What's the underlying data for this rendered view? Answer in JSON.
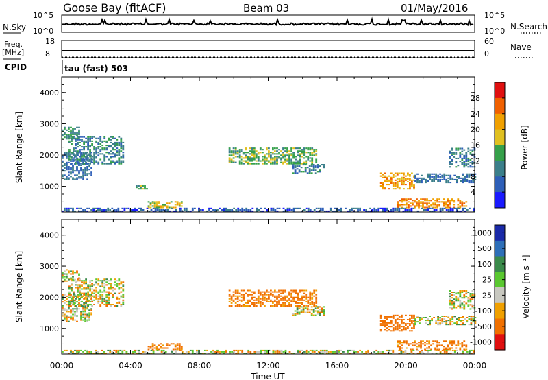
{
  "header": {
    "station": "Goose Bay (fitACF)",
    "beam": "Beam 03",
    "date": "01/May/2016"
  },
  "param_panels": {
    "nsky_label": "N.Sky",
    "nsearch_label": "N.Search",
    "nsky_ticks": [
      "10^5",
      "10^0"
    ],
    "nsearch_ticks": [
      "10^5",
      "10^0"
    ],
    "freq_label_1": "Freq.",
    "freq_label_2": "[MHz]",
    "freq_ticks": [
      "18",
      "8"
    ],
    "nave_label": "Nave",
    "nave_ticks": [
      "60",
      "0"
    ],
    "cpid_label": "CPID",
    "cpid_value": "tau (fast) 503"
  },
  "chart_data": [
    {
      "type": "heatmap",
      "title": "",
      "ylabel": "Slant Range [km]",
      "xlabel": "",
      "ylim": [
        180,
        4500
      ],
      "yticks": [
        "1000",
        "2000",
        "3000",
        "4000"
      ],
      "colorbar": {
        "label": "Power [dB]",
        "ticks": [
          "4",
          "8",
          "12",
          "16",
          "20",
          "24",
          "28"
        ],
        "colors": [
          "#1a1aff",
          "#2e5fb8",
          "#3b7f8a",
          "#35a04a",
          "#e0c020",
          "#f0a000",
          "#f06000",
          "#e01010"
        ]
      },
      "regions_note_units": "time in hours UT, range in km, value in dB",
      "regions": [
        {
          "t": [
            0.0,
            1.7
          ],
          "r": [
            1200,
            2100
          ],
          "v": 8
        },
        {
          "t": [
            0.4,
            3.6
          ],
          "r": [
            1700,
            2600
          ],
          "v": 10
        },
        {
          "t": [
            0.0,
            1.0
          ],
          "r": [
            2500,
            2900
          ],
          "v": 12
        },
        {
          "t": [
            4.3,
            5.0
          ],
          "r": [
            900,
            1000
          ],
          "v": 14
        },
        {
          "t": [
            5.0,
            7.0
          ],
          "r": [
            300,
            500
          ],
          "v": 18
        },
        {
          "t": [
            9.7,
            14.8
          ],
          "r": [
            1700,
            2200
          ],
          "v": 14
        },
        {
          "t": [
            13.4,
            15.3
          ],
          "r": [
            1400,
            1700
          ],
          "v": 10
        },
        {
          "t": [
            18.5,
            20.5
          ],
          "r": [
            900,
            1400
          ],
          "v": 22
        },
        {
          "t": [
            19.5,
            23.5
          ],
          "r": [
            300,
            600
          ],
          "v": 24
        },
        {
          "t": [
            20.5,
            24.0
          ],
          "r": [
            1100,
            1400
          ],
          "v": 8
        },
        {
          "t": [
            22.5,
            24.0
          ],
          "r": [
            1600,
            2200
          ],
          "v": 10
        },
        {
          "t": [
            0.0,
            24.0
          ],
          "r": [
            180,
            300
          ],
          "v": 6
        }
      ]
    },
    {
      "type": "heatmap",
      "title": "",
      "ylabel": "Slant Range [km]",
      "xlabel": "Time UT",
      "ylim": [
        180,
        4500
      ],
      "yticks": [
        "1000",
        "2000",
        "3000",
        "4000"
      ],
      "xticks": [
        "00:00",
        "04:00",
        "08:00",
        "12:00",
        "16:00",
        "20:00",
        "00:00"
      ],
      "colorbar": {
        "label": "Velocity [m s⁻¹]",
        "ticks": [
          "1000",
          "500",
          "100",
          "25",
          "-25",
          "-100",
          "-500",
          "-1000"
        ],
        "colors": [
          "#1a2aa8",
          "#2e6fb8",
          "#3a8a4a",
          "#5ac830",
          "#c8c8c0",
          "#f0a000",
          "#f07000",
          "#e01010"
        ]
      },
      "regions_note_units": "time in hours UT, range in km, value in m/s",
      "regions": [
        {
          "t": [
            0.0,
            1.7
          ],
          "r": [
            1200,
            2100
          ],
          "v": 0
        },
        {
          "t": [
            0.4,
            3.6
          ],
          "r": [
            1700,
            2600
          ],
          "v": 0
        },
        {
          "t": [
            0.0,
            1.0
          ],
          "r": [
            2500,
            2900
          ],
          "v": 0
        },
        {
          "t": [
            5.0,
            7.0
          ],
          "r": [
            300,
            500
          ],
          "v": -200
        },
        {
          "t": [
            9.7,
            14.8
          ],
          "r": [
            1700,
            2200
          ],
          "v": -200
        },
        {
          "t": [
            13.4,
            15.3
          ],
          "r": [
            1400,
            1700
          ],
          "v": 0
        },
        {
          "t": [
            18.5,
            20.5
          ],
          "r": [
            900,
            1400
          ],
          "v": -300
        },
        {
          "t": [
            19.5,
            23.5
          ],
          "r": [
            300,
            600
          ],
          "v": -200
        },
        {
          "t": [
            20.5,
            24.0
          ],
          "r": [
            1100,
            1400
          ],
          "v": 0
        },
        {
          "t": [
            22.5,
            24.0
          ],
          "r": [
            1600,
            2200
          ],
          "v": 0
        },
        {
          "t": [
            0.0,
            24.0
          ],
          "r": [
            180,
            300
          ],
          "v": 0
        }
      ]
    }
  ]
}
